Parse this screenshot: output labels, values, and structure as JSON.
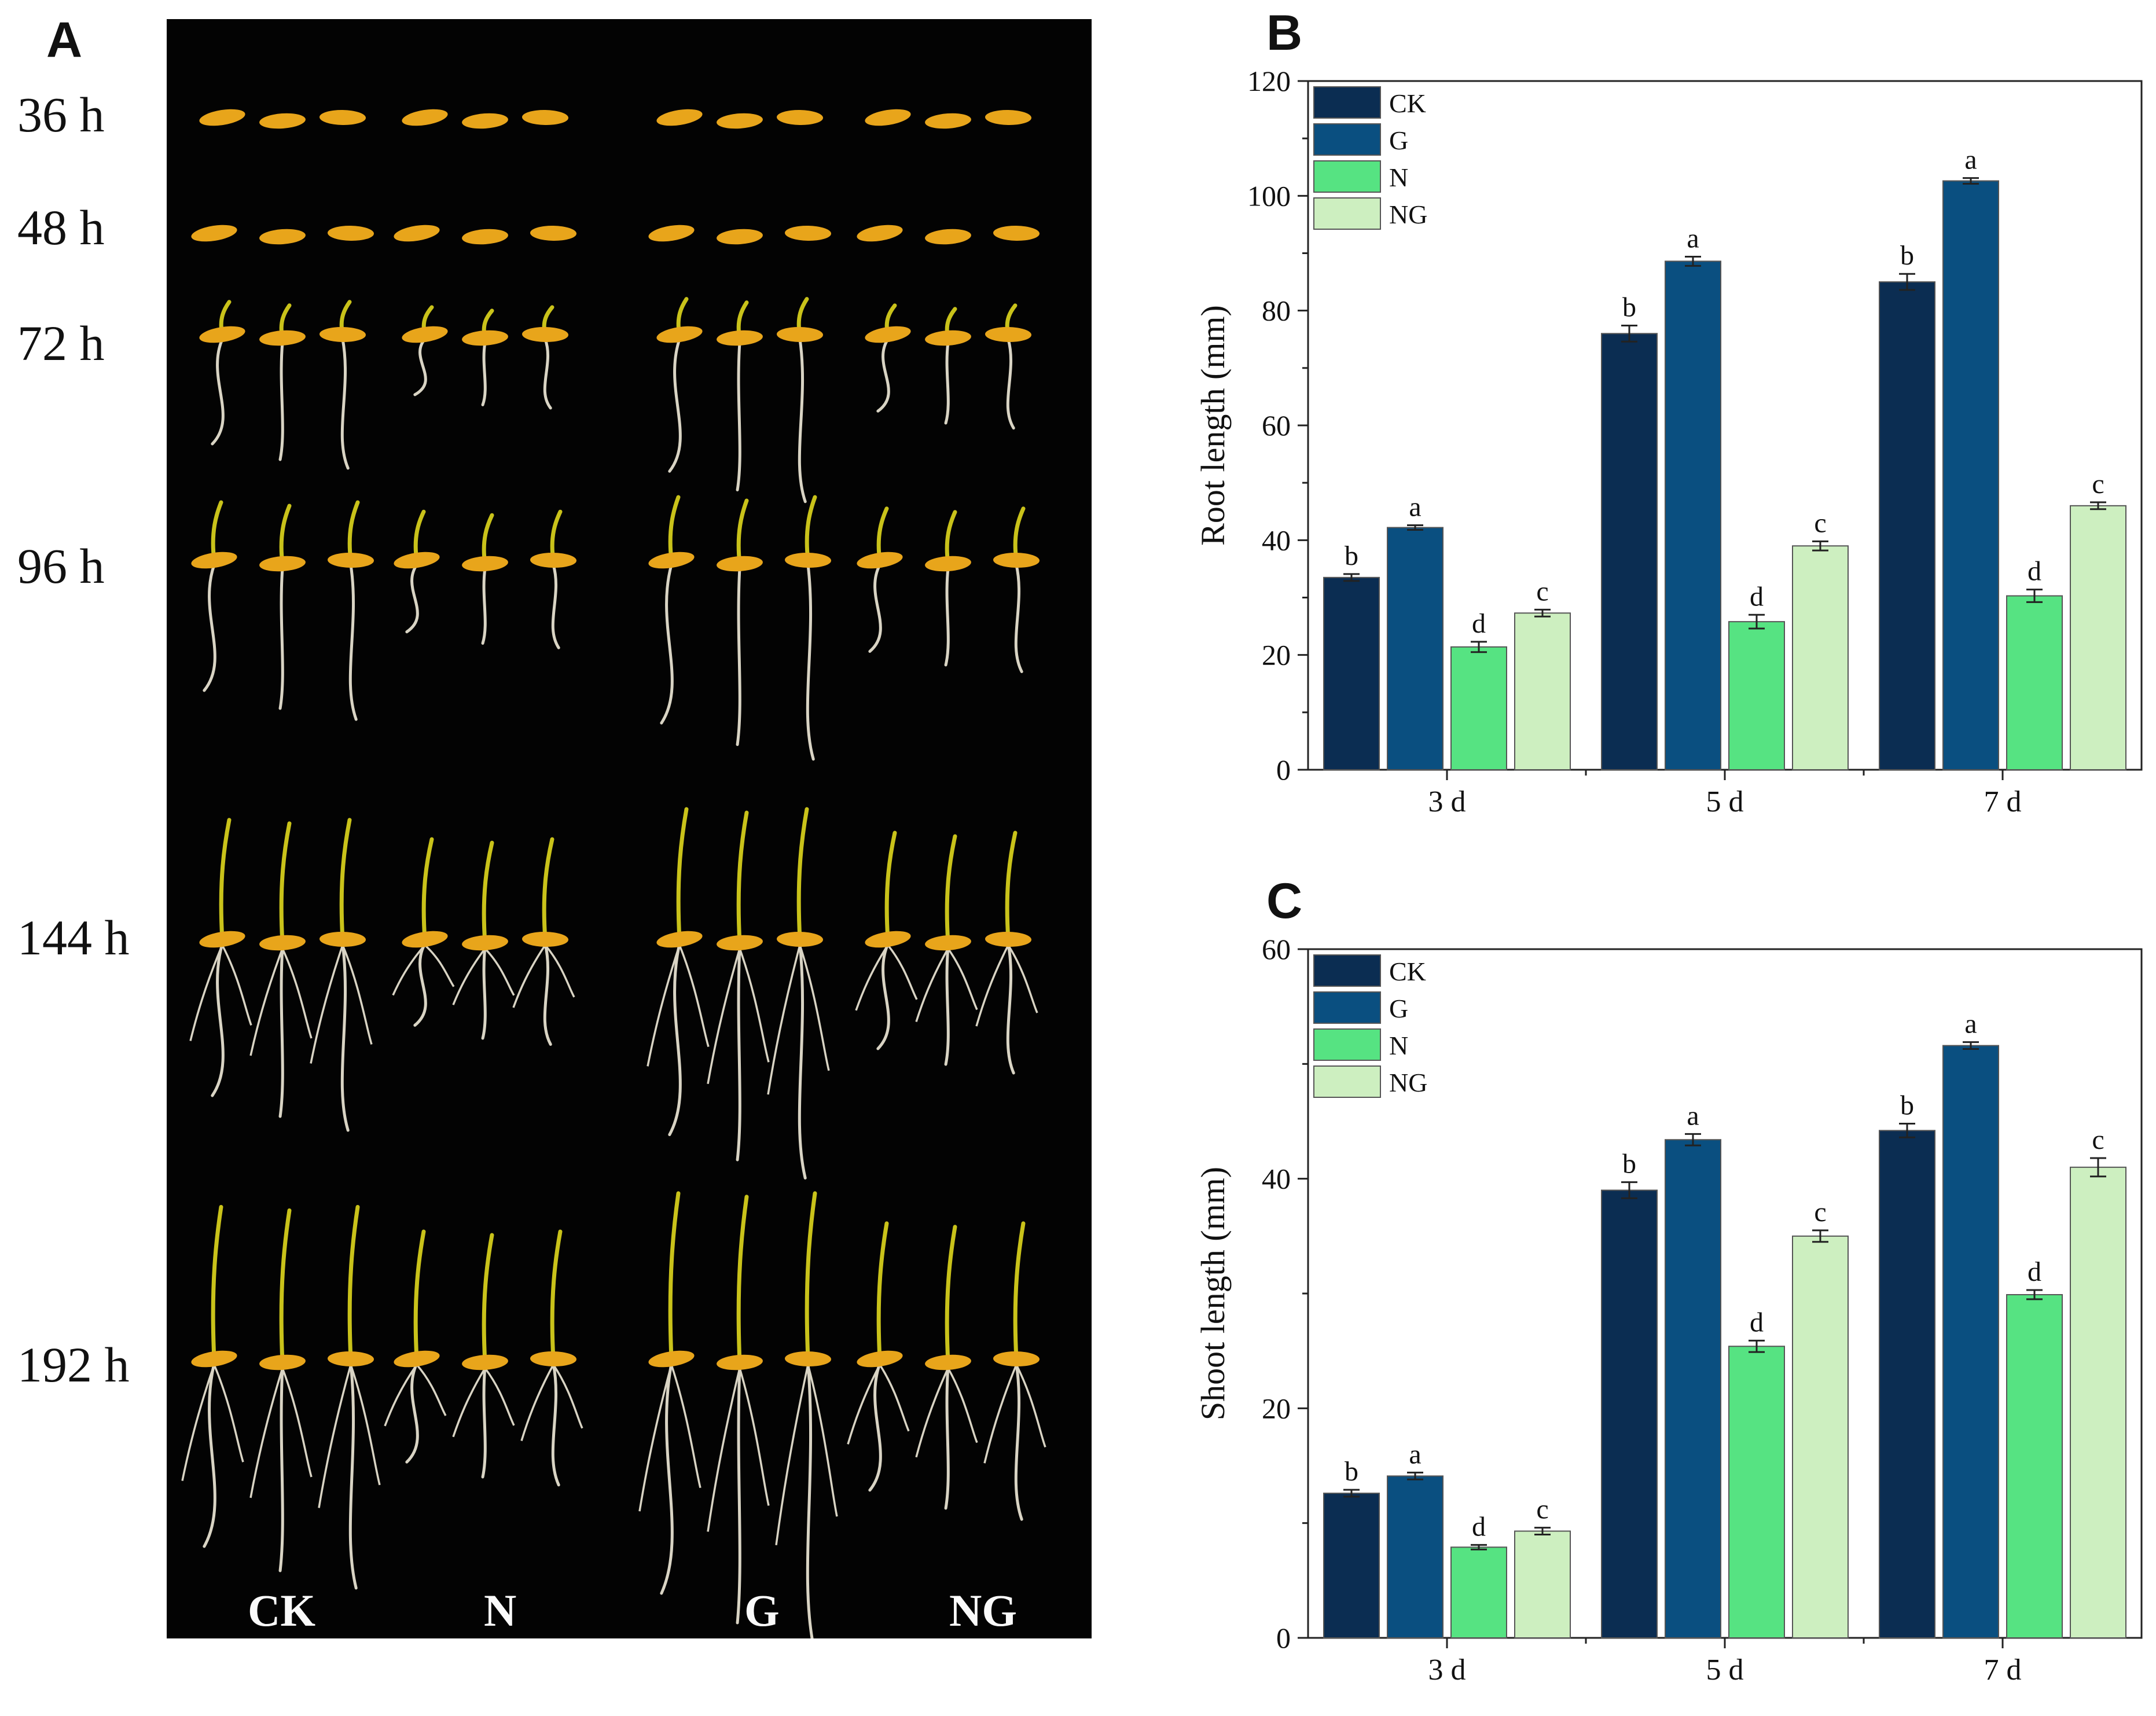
{
  "panels": {
    "a": "A",
    "b": "B",
    "c": "C"
  },
  "photo": {
    "time_points": [
      "36 h",
      "48 h",
      "72 h",
      "96 h",
      "144 h",
      "192 h"
    ],
    "treatments": [
      "CK",
      "N",
      "G",
      "NG"
    ]
  },
  "colors": {
    "CK": "#0b2d52",
    "G": "#0a4f80",
    "N": "#56e382",
    "NG": "#cdefc0",
    "seed": "#e8a51b",
    "shoot": "#c9c21a",
    "root": "#d9d4c4"
  },
  "chart_data": [
    {
      "type": "bar",
      "panel": "B",
      "title": "",
      "xlabel": "",
      "ylabel": "Root length (mm)",
      "categories": [
        "3 d",
        "5 d",
        "7 d"
      ],
      "ylim": [
        0,
        120
      ],
      "yticks": [
        0,
        20,
        40,
        60,
        80,
        100,
        120
      ],
      "legend": "top-left",
      "series": [
        {
          "name": "CK",
          "values": [
            33.5,
            76,
            85
          ],
          "errors": [
            0.6,
            1.4,
            1.4
          ],
          "letters": [
            "b",
            "b",
            "b"
          ]
        },
        {
          "name": "G",
          "values": [
            42.2,
            88.6,
            102.6
          ],
          "errors": [
            0.4,
            0.8,
            0.5
          ],
          "letters": [
            "a",
            "a",
            "a"
          ]
        },
        {
          "name": "N",
          "values": [
            21.4,
            25.8,
            30.3
          ],
          "errors": [
            0.9,
            1.2,
            1.1
          ],
          "letters": [
            "d",
            "d",
            "d"
          ]
        },
        {
          "name": "NG",
          "values": [
            27.3,
            39,
            46
          ],
          "errors": [
            0.6,
            0.8,
            0.6
          ],
          "letters": [
            "c",
            "c",
            "c"
          ]
        }
      ]
    },
    {
      "type": "bar",
      "panel": "C",
      "title": "",
      "xlabel": "",
      "ylabel": "Shoot length (mm)",
      "categories": [
        "3 d",
        "5 d",
        "7 d"
      ],
      "ylim": [
        0,
        60
      ],
      "yticks": [
        0,
        20,
        40,
        60
      ],
      "legend": "top-left",
      "series": [
        {
          "name": "CK",
          "values": [
            12.6,
            39,
            44.2
          ],
          "errors": [
            0.3,
            0.7,
            0.6
          ],
          "letters": [
            "b",
            "b",
            "b"
          ]
        },
        {
          "name": "G",
          "values": [
            14.1,
            43.4,
            51.6
          ],
          "errors": [
            0.3,
            0.5,
            0.3
          ],
          "letters": [
            "a",
            "a",
            "a"
          ]
        },
        {
          "name": "N",
          "values": [
            7.9,
            25.4,
            29.9
          ],
          "errors": [
            0.2,
            0.5,
            0.4
          ],
          "letters": [
            "d",
            "d",
            "d"
          ]
        },
        {
          "name": "NG",
          "values": [
            9.3,
            35,
            41
          ],
          "errors": [
            0.3,
            0.5,
            0.8
          ],
          "letters": [
            "c",
            "c",
            "c"
          ]
        }
      ]
    }
  ]
}
